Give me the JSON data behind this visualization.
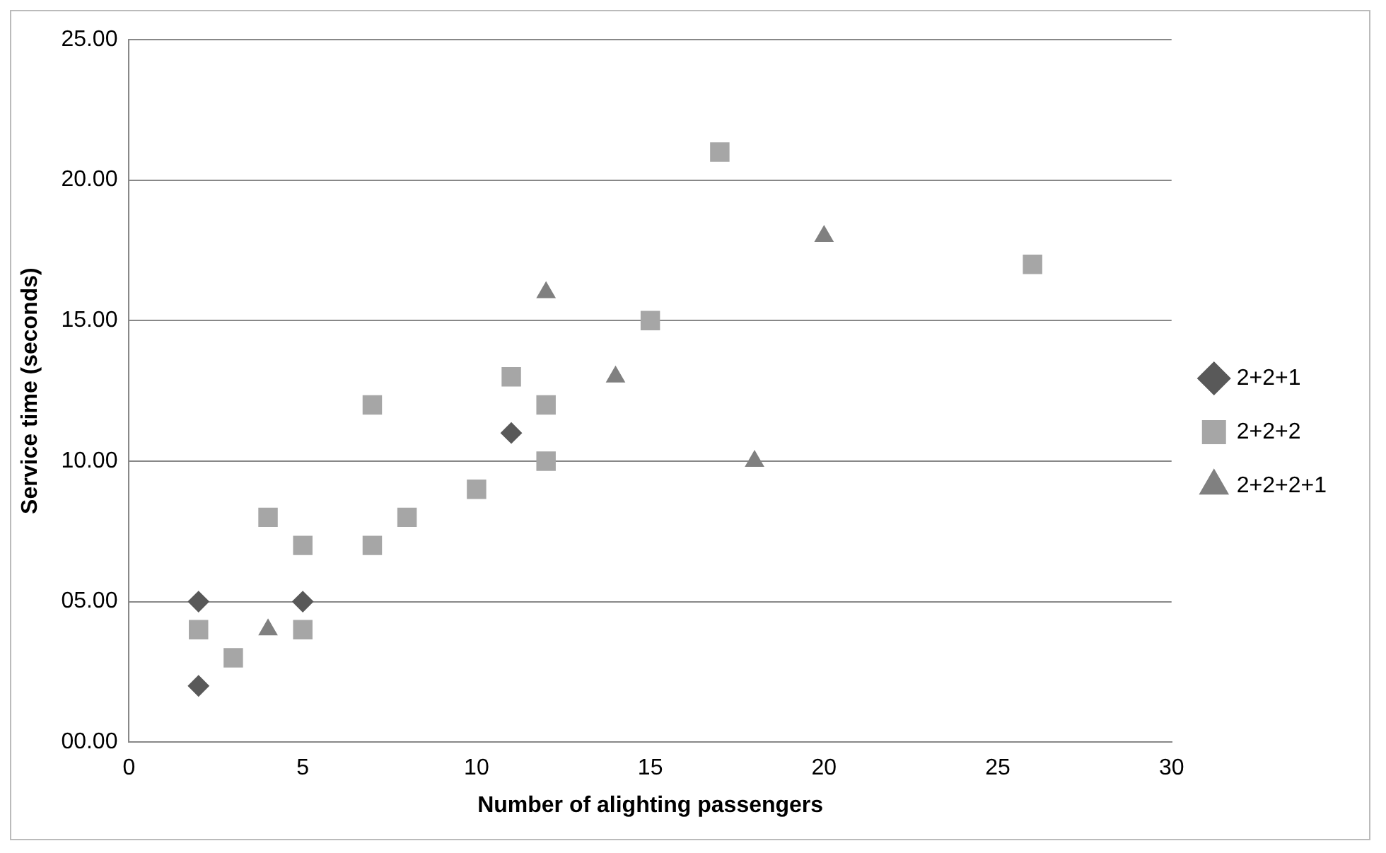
{
  "chart_data": {
    "type": "scatter",
    "xlabel": "Number of alighting passengers",
    "ylabel": "Service time (seconds)",
    "xlim": [
      0,
      30
    ],
    "xticks": [
      0,
      5,
      10,
      15,
      20,
      25,
      30
    ],
    "ylim": [
      0,
      25
    ],
    "yticks": [
      {
        "value": 0,
        "label": "00.00"
      },
      {
        "value": 5,
        "label": "05.00"
      },
      {
        "value": 10,
        "label": "10.00"
      },
      {
        "value": 15,
        "label": "15.00"
      },
      {
        "value": 20,
        "label": "20.00"
      },
      {
        "value": 25,
        "label": "25.00"
      }
    ],
    "grid": "y",
    "legend": "right",
    "series": [
      {
        "name": "2+2+1",
        "color": "#595959",
        "marker": "diamond",
        "x": [
          2,
          2,
          5,
          11
        ],
        "values": [
          5,
          2,
          5,
          11
        ]
      },
      {
        "name": "2+2+2",
        "color": "#a6a6a6",
        "marker": "square",
        "x": [
          2,
          3,
          4,
          5,
          5,
          7,
          7,
          8,
          10,
          11,
          12,
          12,
          15,
          17,
          26
        ],
        "values": [
          4,
          3,
          8,
          7,
          4,
          12,
          7,
          8,
          9,
          13,
          12,
          10,
          15,
          21,
          17
        ]
      },
      {
        "name": "2+2+2+1",
        "color": "#808080",
        "marker": "triangle",
        "x": [
          4,
          12,
          14,
          18,
          20
        ],
        "values": [
          4,
          16,
          13,
          10,
          18
        ]
      }
    ]
  }
}
